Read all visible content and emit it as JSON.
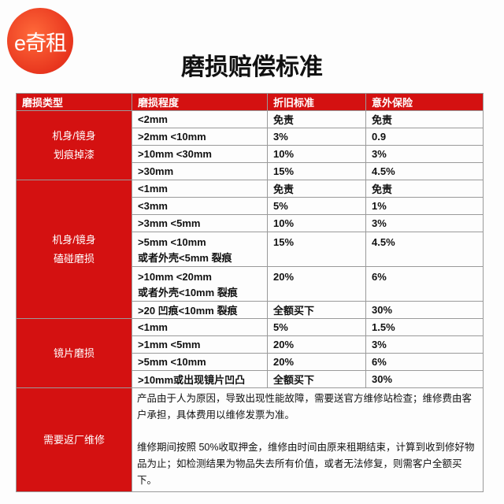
{
  "logo": {
    "text": "e奇租",
    "color": "#e8361e"
  },
  "title": "磨损赔偿标准",
  "colors": {
    "header": "#d41111",
    "category": "#d41111"
  },
  "headers": [
    "磨损类型",
    "磨损程度",
    "折旧标准",
    "意外保险"
  ],
  "groups": [
    {
      "category": [
        "机身/镜身",
        "划痕掉漆"
      ],
      "rows": [
        [
          "<2mm",
          "免责",
          "免责"
        ],
        [
          ">2mm   <10mm",
          "3%",
          "0.9"
        ],
        [
          ">10mm   <30mm",
          "10%",
          "3%"
        ],
        [
          ">30mm",
          "15%",
          "4.5%"
        ]
      ]
    },
    {
      "category": [
        "机身/镜身",
        "磕碰磨损"
      ],
      "rows": [
        [
          "<1mm",
          "免责",
          "免责"
        ],
        [
          "<3mm",
          "5%",
          "1%"
        ],
        [
          ">3mm   <5mm",
          "10%",
          "3%"
        ],
        [
          ">5mm   <10mm\n或者外壳<5mm 裂痕",
          "15%",
          "4.5%"
        ],
        [
          ">10mm   <20mm\n或者外壳<10mm 裂痕",
          "20%",
          "6%"
        ],
        [
          ">20 凹痕<10mm 裂痕",
          "全额买下",
          "30%"
        ]
      ]
    },
    {
      "category": [
        "镜片磨损"
      ],
      "rows": [
        [
          "<1mm",
          "5%",
          "1.5%"
        ],
        [
          ">1mm   <5mm",
          "20%",
          "3%"
        ],
        [
          ">5mm   <10mm",
          "20%",
          "6%"
        ],
        [
          ">10mm或出现镜片凹凸",
          "全额买下",
          "30%"
        ]
      ]
    }
  ],
  "repair": {
    "category": "需要返厂维修",
    "paragraphs": [
      "产品由于人为原因，导致出现性能故障，需要送官方维修站检查；维修费由客户承担，具体费用以维修发票为准。",
      "维修期间按照 50%收取押金，维修由时间由原来租期结束，计算到收到修好物品为止；如检测结果为物品失去所有价值，或者无法修复，则需客户全额买下。"
    ]
  }
}
